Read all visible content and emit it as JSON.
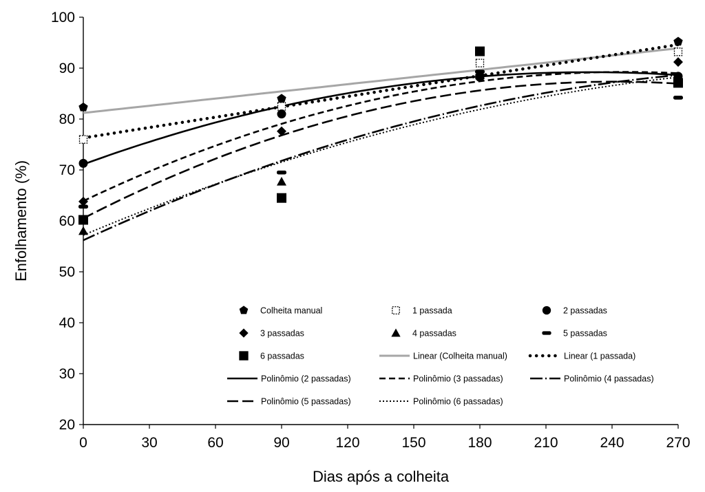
{
  "chart_data": {
    "type": "scatter",
    "xlabel": "Dias após a colheita",
    "ylabel": "Enfolhamento (%)",
    "xlim": [
      0,
      270
    ],
    "ylim": [
      20,
      100
    ],
    "xticks": [
      "0",
      "30",
      "60",
      "90",
      "120",
      "150",
      "180",
      "210",
      "240",
      "270"
    ],
    "yticks": [
      "20",
      "30",
      "40",
      "50",
      "60",
      "70",
      "80",
      "90",
      "100"
    ],
    "x": [
      0,
      90,
      180,
      270
    ],
    "grid": false,
    "legend_position": "inside-bottom",
    "series": [
      {
        "name": "Colheita manual",
        "marker": "pentagon",
        "values": [
          82.3,
          84.0,
          88.5,
          95.2
        ]
      },
      {
        "name": "1 passada",
        "marker": "open-square",
        "values": [
          76.0,
          82.5,
          91.0,
          93.2
        ]
      },
      {
        "name": "2 passadas",
        "marker": "circle",
        "values": [
          71.3,
          81.0,
          88.2,
          88.4
        ]
      },
      {
        "name": "3 passadas",
        "marker": "diamond",
        "values": [
          63.8,
          77.6,
          88.6,
          91.2
        ]
      },
      {
        "name": "4 passadas",
        "marker": "triangle",
        "values": [
          58.0,
          67.7,
          88.6,
          87.5
        ]
      },
      {
        "name": "5 passadas",
        "marker": "dash",
        "values": [
          62.8,
          69.5,
          89.3,
          84.2
        ]
      },
      {
        "name": "6 passadas",
        "marker": "square",
        "values": [
          60.2,
          64.5,
          93.3,
          87.1
        ]
      }
    ],
    "trendlines": [
      {
        "name": "Linear (Colheita manual)",
        "style": "solid-gray",
        "coef": [
          81.2,
          0.047,
          0
        ]
      },
      {
        "name": "Linear (1 passada)",
        "style": "round-dot",
        "coef": [
          76.3,
          0.0678,
          0
        ]
      },
      {
        "name": "Polinômio (2 passadas)",
        "style": "solid-black",
        "coef": [
          71.1,
          0.1576,
          -0.000343
        ]
      },
      {
        "name": "Polinômio (3 passadas)",
        "style": "dash",
        "coef": [
          63.9,
          0.2061,
          -0.000419
        ]
      },
      {
        "name": "Polinômio (4 passadas)",
        "style": "long-dash-dot",
        "coef": [
          56.2,
          0.1998,
          -0.000295
        ]
      },
      {
        "name": "Polinômio (5 passadas)",
        "style": "long-dash",
        "coef": [
          60.5,
          0.2227,
          -0.000462
        ]
      },
      {
        "name": "Polinômio (6 passadas)",
        "style": "dot",
        "coef": [
          57.2,
          0.1816,
          -0.000247
        ]
      }
    ]
  }
}
